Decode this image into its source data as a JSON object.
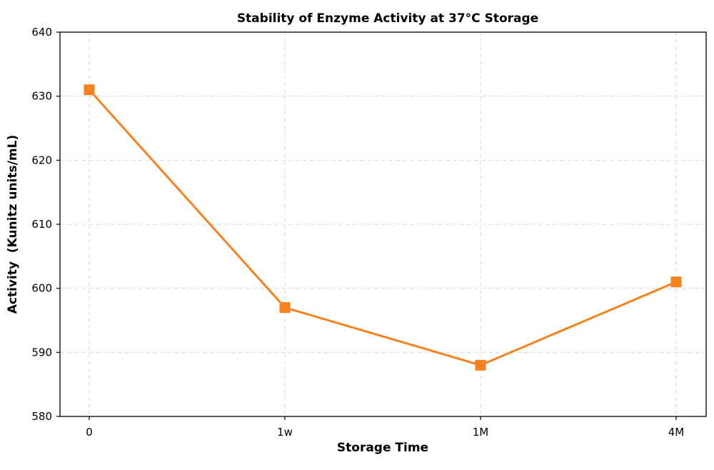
{
  "chart_data": {
    "type": "line",
    "title": "Stability of Enzyme Activity at 37°C Storage",
    "xlabel": "Storage Time",
    "ylabel": "Activity  (Kunitz units/mL)",
    "categories": [
      "0",
      "1w",
      "1M",
      "4M"
    ],
    "series": [
      {
        "values": [
          631,
          597,
          588,
          601
        ],
        "color": "#f5821f",
        "marker": "square"
      }
    ],
    "ylim": [
      580,
      640
    ],
    "yticks": [
      580,
      590,
      600,
      610,
      620,
      630,
      640
    ],
    "grid": true,
    "legend": "none"
  }
}
